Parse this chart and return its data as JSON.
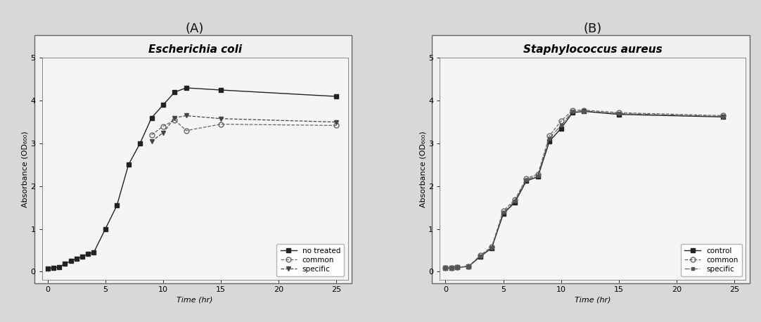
{
  "panel_A": {
    "title": "Escherichia coli",
    "xlabel": "Time (hr)",
    "ylabel": "Absorbance (OD₆₀₀)",
    "xlim": [
      -0.5,
      26
    ],
    "ylim": [
      -0.2,
      5
    ],
    "xticks": [
      0,
      5,
      10,
      15,
      20,
      25
    ],
    "yticks": [
      0,
      1,
      2,
      3,
      4,
      5
    ],
    "series": [
      {
        "label": "no treated",
        "x": [
          0,
          0.5,
          1,
          1.5,
          2,
          2.5,
          3,
          3.5,
          4,
          5,
          6,
          7,
          8,
          9,
          10,
          11,
          12,
          15,
          25
        ],
        "y": [
          0.07,
          0.09,
          0.11,
          0.18,
          0.25,
          0.3,
          0.35,
          0.42,
          0.45,
          1.0,
          1.55,
          2.5,
          3.0,
          3.6,
          3.9,
          4.2,
          4.3,
          4.25,
          4.1
        ],
        "linestyle": "-",
        "marker": "s",
        "marker_filled": true,
        "color": "#222222",
        "markersize": 4,
        "linewidth": 1.0
      },
      {
        "label": "common",
        "x": [
          9,
          10,
          11,
          12,
          15,
          25
        ],
        "y": [
          3.2,
          3.4,
          3.55,
          3.3,
          3.45,
          3.42
        ],
        "linestyle": "--",
        "marker": "o",
        "marker_filled": false,
        "color": "#666666",
        "markersize": 5,
        "linewidth": 0.9
      },
      {
        "label": "specific",
        "x": [
          9,
          10,
          11,
          12,
          15,
          25
        ],
        "y": [
          3.05,
          3.25,
          3.6,
          3.65,
          3.58,
          3.5
        ],
        "linestyle": "--",
        "marker": "v",
        "marker_filled": true,
        "color": "#444444",
        "markersize": 5,
        "linewidth": 0.9
      }
    ],
    "legend_loc": "lower right"
  },
  "panel_B": {
    "title": "Staphylococcus aureus",
    "xlabel": "Time (hr)",
    "ylabel": "Absorbance (OD₆₀₀)",
    "xlim": [
      -0.5,
      26
    ],
    "ylim": [
      -0.2,
      5
    ],
    "xticks": [
      0,
      5,
      10,
      15,
      20,
      25
    ],
    "yticks": [
      0,
      1,
      2,
      3,
      4,
      5
    ],
    "series": [
      {
        "label": "control",
        "x": [
          0,
          0.5,
          1,
          2,
          3,
          4,
          5,
          6,
          7,
          8,
          9,
          10,
          11,
          12,
          15,
          24
        ],
        "y": [
          0.08,
          0.09,
          0.1,
          0.12,
          0.35,
          0.55,
          1.35,
          1.62,
          2.12,
          2.22,
          3.05,
          3.35,
          3.72,
          3.75,
          3.68,
          3.62
        ],
        "linestyle": "-",
        "marker": "s",
        "marker_filled": true,
        "color": "#222222",
        "markersize": 4,
        "linewidth": 1.0
      },
      {
        "label": "common",
        "x": [
          0,
          0.5,
          1,
          2,
          3,
          4,
          5,
          6,
          7,
          8,
          9,
          10,
          11,
          12,
          15,
          24
        ],
        "y": [
          0.08,
          0.09,
          0.1,
          0.12,
          0.38,
          0.58,
          1.42,
          1.68,
          2.18,
          2.28,
          3.18,
          3.52,
          3.78,
          3.78,
          3.72,
          3.65
        ],
        "linestyle": "--",
        "marker": "o",
        "marker_filled": false,
        "color": "#666666",
        "markersize": 5,
        "linewidth": 0.9
      },
      {
        "label": "specific",
        "x": [
          0,
          0.5,
          1,
          2,
          3,
          4,
          5,
          6,
          7,
          8,
          9,
          10,
          11,
          12,
          15,
          24
        ],
        "y": [
          0.08,
          0.09,
          0.1,
          0.12,
          0.36,
          0.56,
          1.38,
          1.65,
          2.15,
          2.25,
          3.12,
          3.42,
          3.75,
          3.76,
          3.7,
          3.63
        ],
        "linestyle": "-.",
        "marker": "s",
        "marker_filled": true,
        "color": "#555555",
        "markersize": 3,
        "linewidth": 0.8
      }
    ],
    "legend_loc": "lower right"
  },
  "label_A": "(A)",
  "label_B": "(B)",
  "fig_bg_color": "#d8d8d8",
  "outer_box_color": "#ffffff",
  "plot_bg_color": "#f5f5f5",
  "title_fontsize": 11,
  "axis_label_fontsize": 8,
  "tick_fontsize": 8,
  "legend_fontsize": 7.5,
  "panel_label_fontsize": 13
}
